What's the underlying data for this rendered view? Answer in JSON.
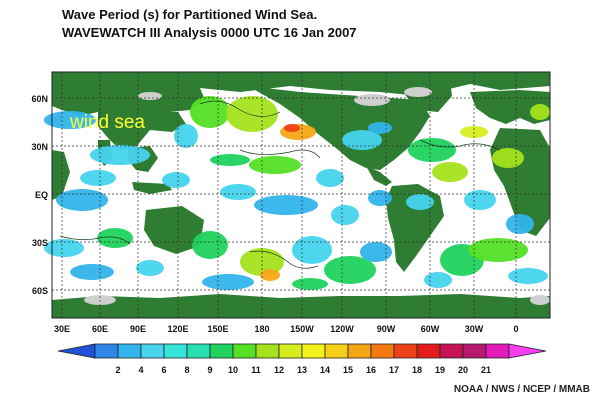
{
  "title": {
    "line1": "Wave Period (s) for Partitioned Wind Sea.",
    "line2": "WAVEWATCH III Analysis 0000 UTC 16 Jan 2007"
  },
  "map": {
    "overlay_label": "wind sea",
    "overlay_color": "#ffff33",
    "land_color": "#2e7d32",
    "ice_color": "#cfcfcf",
    "lat_labels": [
      "60N",
      "30N",
      "EQ",
      "30S",
      "60S"
    ],
    "lon_labels": [
      "30E",
      "60E",
      "90E",
      "120E",
      "150E",
      "180",
      "150W",
      "120W",
      "90W",
      "60W",
      "30W",
      "0"
    ]
  },
  "colorbar": {
    "ticks": [
      "2",
      "4",
      "6",
      "8",
      "9",
      "10",
      "11",
      "12",
      "13",
      "14",
      "15",
      "16",
      "17",
      "18",
      "19",
      "20",
      "21"
    ],
    "colors": [
      "#1f52d6",
      "#2f86e6",
      "#32b4ec",
      "#46d4ee",
      "#36e4da",
      "#27dfb0",
      "#1fd35e",
      "#55e026",
      "#a4e31e",
      "#d7ee1e",
      "#f4f21c",
      "#f8cf17",
      "#f5a615",
      "#f57a14",
      "#f0421a",
      "#e51c1c",
      "#c41454",
      "#b9186f",
      "#e21ab9",
      "#f63ef0"
    ]
  },
  "credit": "NOAA / NWS / NCEP / MMAB"
}
